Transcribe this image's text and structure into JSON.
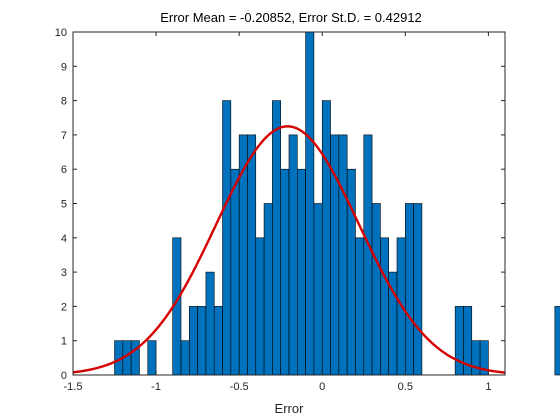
{
  "chart_data": {
    "type": "bar",
    "title": "Error Mean = -0.20852, Error St.D. = 0.42912",
    "xlabel": "Error",
    "ylabel": "",
    "xlim": [
      -1.5,
      1.1
    ],
    "ylim": [
      0,
      10
    ],
    "grid": false,
    "xticks": [
      "-1.5",
      "-1",
      "-0.5",
      "0",
      "0.5",
      "1"
    ],
    "yticks": [
      "0",
      "1",
      "2",
      "3",
      "4",
      "5",
      "6",
      "7",
      "8",
      "9",
      "10"
    ],
    "bin_width": 0.05,
    "bin_start": -1.25,
    "counts": [
      1,
      1,
      1,
      0,
      1,
      0,
      0,
      4,
      1,
      2,
      2,
      3,
      2,
      8,
      6,
      7,
      7,
      4,
      5,
      8,
      6,
      7,
      6,
      10,
      5,
      8,
      7,
      7,
      6,
      4,
      7,
      5,
      4,
      3,
      4,
      5,
      5,
      0,
      0,
      0,
      0,
      2,
      2,
      1,
      1,
      0,
      0,
      0,
      0,
      0,
      0,
      0,
      0,
      2
    ],
    "fit_curve": {
      "type": "normal",
      "mean": -0.20852,
      "std": 0.42912,
      "peak": 7.25
    },
    "colors": {
      "bar": "#0072BD",
      "bar_edge": "#000000",
      "curve": "#D50000"
    }
  }
}
